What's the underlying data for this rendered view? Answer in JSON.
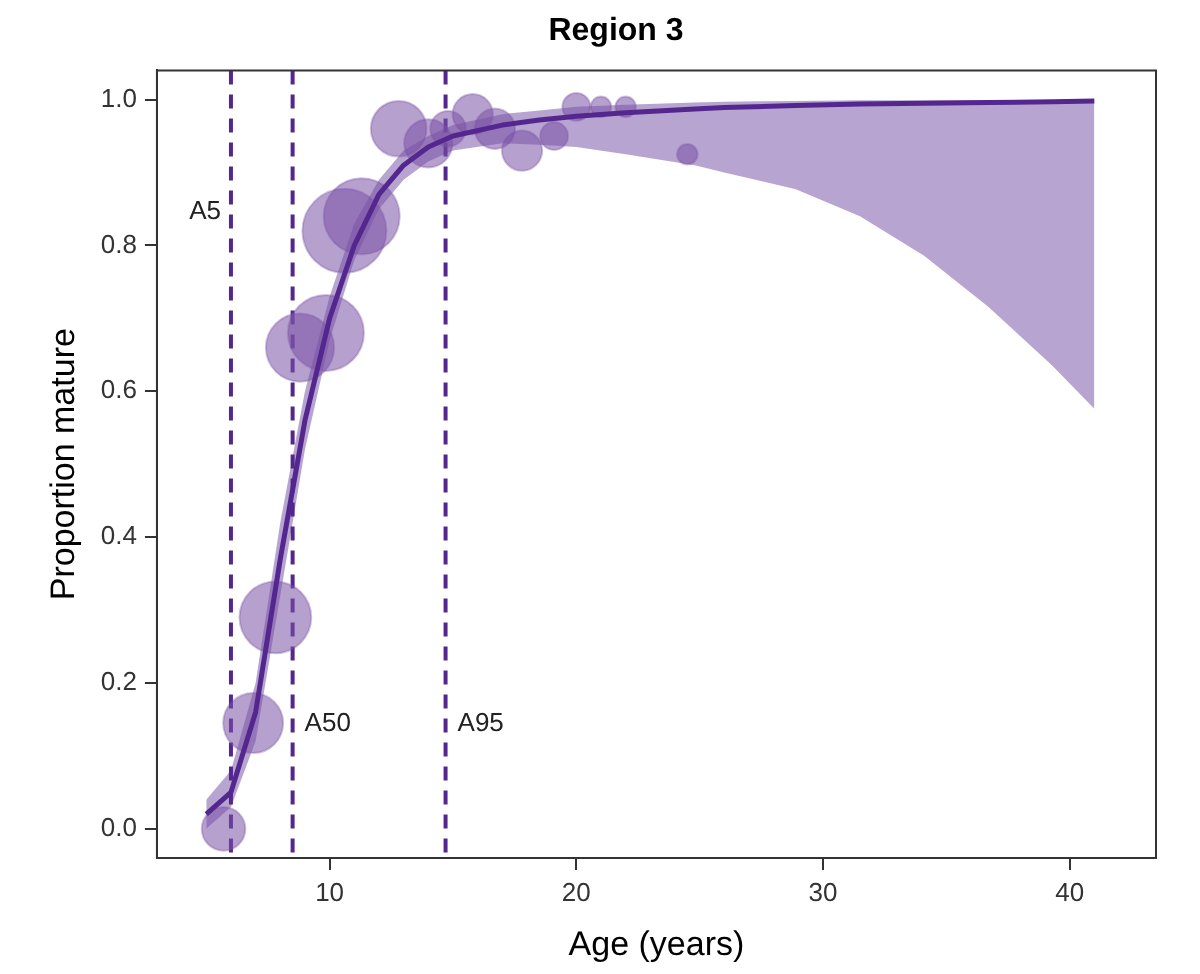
{
  "chart_data": {
    "type": "bubble",
    "title": "Region 3",
    "xlabel": "Age (years)",
    "ylabel": "Proportion mature",
    "xlim": [
      3,
      43.5
    ],
    "ylim": [
      -0.04,
      1.04
    ],
    "xticks": [
      10,
      20,
      30,
      40
    ],
    "yticks": [
      {
        "value": 0,
        "label": "0.0"
      },
      {
        "value": 0.2,
        "label": "0.2"
      },
      {
        "value": 0.4,
        "label": "0.4"
      },
      {
        "value": 0.6,
        "label": "0.6"
      },
      {
        "value": 0.8,
        "label": "0.8"
      },
      {
        "value": 1,
        "label": "1.0"
      }
    ],
    "grid": false,
    "legend": false,
    "marker": "circle",
    "series": [
      {
        "color": "#7a52a6",
        "x": [
          5.7,
          6.9,
          7.8,
          8.8,
          9.85,
          10.6,
          11.3,
          12.8,
          14.0,
          14.8,
          15.8,
          16.7,
          17.8,
          19.1,
          20,
          21,
          22,
          24.5
        ],
        "values": [
          0.0,
          0.145,
          0.29,
          0.66,
          0.68,
          0.82,
          0.84,
          0.96,
          0.94,
          0.96,
          0.98,
          0.96,
          0.93,
          0.95,
          0.99,
          0.99,
          0.99,
          0.925
        ],
        "sizes": [
          0.27,
          0.51,
          0.73,
          0.66,
          0.82,
          1,
          0.82,
          0.44,
          0.33,
          0.18,
          0.23,
          0.23,
          0.23,
          0.11,
          0.11,
          0.06,
          0.06,
          0.06
        ]
      },
      {
        "type": "line",
        "color": "#54278f",
        "line_style": "solid",
        "marker": "none",
        "x": [
          5,
          6,
          7,
          8,
          9,
          10,
          11,
          12,
          13,
          14,
          15,
          17,
          18.5,
          20,
          22,
          24.8,
          26,
          28.9,
          31.5,
          34.1,
          36.7,
          39.3,
          41
        ],
        "values": [
          0.02,
          0.05,
          0.16,
          0.37,
          0.56,
          0.7,
          0.8,
          0.87,
          0.91,
          0.935,
          0.95,
          0.965,
          0.972,
          0.977,
          0.982,
          0.987,
          0.989,
          0.992,
          0.994,
          0.995,
          0.996,
          0.997,
          0.998
        ],
        "lower": [
          0,
          0.03,
          0.12,
          0.32,
          0.52,
          0.67,
          0.78,
          0.85,
          0.89,
          0.915,
          0.93,
          0.94,
          0.938,
          0.935,
          0.925,
          0.91,
          0.9,
          0.877,
          0.84,
          0.786,
          0.716,
          0.635,
          0.576
        ],
        "upper": [
          0.04,
          0.08,
          0.2,
          0.42,
          0.6,
          0.73,
          0.83,
          0.89,
          0.93,
          0.95,
          0.965,
          0.98,
          0.985,
          0.99,
          0.993,
          0.996,
          0.997,
          0.998,
          0.999,
          0.999,
          0.999,
          0.999,
          0.999
        ]
      }
    ],
    "ref_lines": [
      {
        "axis": "x",
        "value": 6.0,
        "label": "A5",
        "color": "#54278f",
        "line_style": "dashed"
      },
      {
        "axis": "x",
        "value": 8.5,
        "label": "A50",
        "color": "#54278f",
        "line_style": "dashed"
      },
      {
        "axis": "x",
        "value": 14.7,
        "label": "A95",
        "color": "#54278f",
        "line_style": "dashed"
      }
    ]
  }
}
